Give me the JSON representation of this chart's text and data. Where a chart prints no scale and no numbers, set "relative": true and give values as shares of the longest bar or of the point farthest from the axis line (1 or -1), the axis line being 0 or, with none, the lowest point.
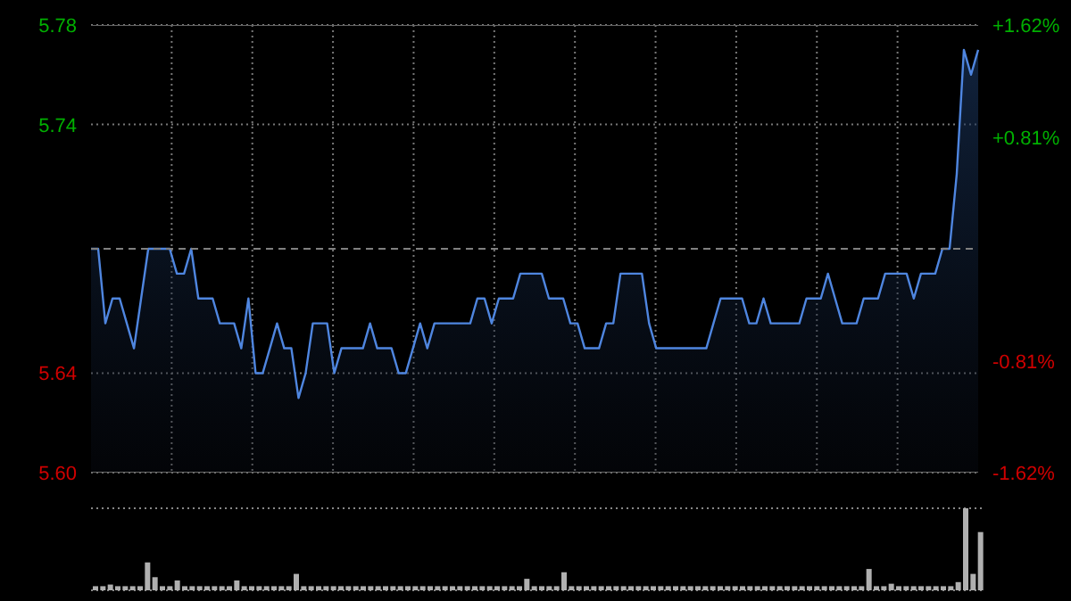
{
  "chart_data": [
    {
      "type": "area",
      "categories": [
        null,
        null,
        null,
        null,
        null,
        null,
        null,
        null,
        null,
        null,
        null,
        null,
        null,
        null,
        null,
        null,
        null,
        null,
        null,
        null,
        null,
        null,
        null,
        null,
        null,
        null,
        null,
        null,
        null,
        null,
        null,
        null,
        null,
        null,
        null,
        null,
        null,
        null,
        null,
        null,
        null,
        null,
        null,
        null,
        null,
        null,
        null,
        null,
        null,
        null,
        null,
        null,
        null,
        null,
        null,
        null,
        null,
        null,
        null,
        null,
        null,
        null,
        null,
        null,
        null,
        null,
        null,
        null,
        null,
        null,
        null,
        null,
        null,
        null,
        null,
        null,
        null,
        null,
        null,
        null,
        null,
        null,
        null,
        null,
        null,
        null,
        null,
        null,
        null,
        null,
        null,
        null,
        null,
        null,
        null,
        null,
        null,
        null,
        null,
        null,
        null,
        null,
        null,
        null,
        null,
        null,
        null,
        null,
        null,
        null,
        null,
        null,
        null,
        null,
        null,
        null,
        null,
        null,
        null,
        null,
        null,
        null,
        null,
        null,
        null
      ],
      "series": [
        {
          "color": "#4f86e0",
          "values": [
            5.69,
            5.69,
            5.66,
            5.67,
            5.67,
            5.66,
            5.65,
            5.67,
            5.69,
            5.69,
            5.69,
            5.69,
            5.68,
            5.68,
            5.69,
            5.67,
            5.67,
            5.67,
            5.66,
            5.66,
            5.66,
            5.65,
            5.67,
            5.64,
            5.64,
            5.65,
            5.66,
            5.65,
            5.65,
            5.63,
            5.64,
            5.66,
            5.66,
            5.66,
            5.64,
            5.65,
            5.65,
            5.65,
            5.65,
            5.66,
            5.65,
            5.65,
            5.65,
            5.64,
            5.64,
            5.65,
            5.66,
            5.65,
            5.66,
            5.66,
            5.66,
            5.66,
            5.66,
            5.66,
            5.67,
            5.67,
            5.66,
            5.67,
            5.67,
            5.67,
            5.68,
            5.68,
            5.68,
            5.68,
            5.67,
            5.67,
            5.67,
            5.66,
            5.66,
            5.65,
            5.65,
            5.65,
            5.66,
            5.66,
            5.68,
            5.68,
            5.68,
            5.68,
            5.66,
            5.65,
            5.65,
            5.65,
            5.65,
            5.65,
            5.65,
            5.65,
            5.65,
            5.66,
            5.67,
            5.67,
            5.67,
            5.67,
            5.66,
            5.66,
            5.67,
            5.66,
            5.66,
            5.66,
            5.66,
            5.66,
            5.67,
            5.67,
            5.67,
            5.68,
            5.67,
            5.66,
            5.66,
            5.66,
            5.67,
            5.67,
            5.67,
            5.68,
            5.68,
            5.68,
            5.68,
            5.67,
            5.68,
            5.68,
            5.68,
            5.69,
            5.69,
            5.72,
            5.77,
            5.76,
            5.77
          ]
        }
      ],
      "ylim": [
        5.6,
        5.78
      ],
      "yticks": [
        {
          "value": 5.6,
          "label": "5.60"
        },
        5.64,
        5.74,
        5.78
      ],
      "y2lim": [
        -1.62,
        1.62
      ],
      "y2ticks": [
        {
          "value": -1.62,
          "label": "-1.62%"
        },
        {
          "value": -0.81,
          "label": "-0.81%"
        },
        {
          "value": 0.81,
          "label": "+0.81%"
        },
        {
          "value": 1.62,
          "label": "+1.62%"
        }
      ],
      "ref_lines": [
        {
          "axis": "y",
          "value": 5.69,
          "line_style": "dashed",
          "color": "#808080"
        }
      ],
      "grid": true,
      "tick_labels": "y"
    },
    {
      "type": "bar",
      "relative": true,
      "color": "#b0b0b0",
      "grid": true,
      "tick_labels": false,
      "categories": [
        null,
        null,
        null,
        null,
        null,
        null,
        null,
        null,
        null,
        null,
        null,
        null,
        null,
        null,
        null,
        null,
        null,
        null,
        null,
        null,
        null,
        null,
        null,
        null,
        null,
        null,
        null,
        null,
        null,
        null,
        null,
        null,
        null,
        null,
        null,
        null,
        null,
        null,
        null,
        null,
        null,
        null,
        null,
        null,
        null,
        null,
        null,
        null,
        null,
        null,
        null,
        null,
        null,
        null,
        null,
        null,
        null,
        null,
        null,
        null,
        null,
        null,
        null,
        null,
        null,
        null,
        null,
        null,
        null,
        null,
        null,
        null,
        null,
        null,
        null,
        null,
        null,
        null,
        null,
        null,
        null,
        null,
        null,
        null,
        null,
        null,
        null,
        null,
        null,
        null,
        null,
        null,
        null,
        null,
        null,
        null,
        null,
        null,
        null,
        null,
        null,
        null,
        null,
        null,
        null,
        null,
        null,
        null,
        null,
        null,
        null,
        null,
        null,
        null,
        null,
        null,
        null,
        null,
        null,
        null
      ],
      "values": [
        0.05,
        0.05,
        0.07,
        0.05,
        0.05,
        0.05,
        0.05,
        0.34,
        0.16,
        0.05,
        0.05,
        0.12,
        0.05,
        0.05,
        0.05,
        0.05,
        0.05,
        0.05,
        0.05,
        0.12,
        0.05,
        0.05,
        0.05,
        0.05,
        0.05,
        0.05,
        0.05,
        0.2,
        0.05,
        0.05,
        0.05,
        0.05,
        0.05,
        0.05,
        0.05,
        0.05,
        0.05,
        0.05,
        0.05,
        0.05,
        0.05,
        0.05,
        0.05,
        0.05,
        0.05,
        0.05,
        0.05,
        0.05,
        0.05,
        0.05,
        0.05,
        0.05,
        0.05,
        0.05,
        0.05,
        0.05,
        0.05,
        0.05,
        0.14,
        0.05,
        0.05,
        0.05,
        0.05,
        0.22,
        0.05,
        0.05,
        0.05,
        0.05,
        0.05,
        0.05,
        0.05,
        0.05,
        0.05,
        0.05,
        0.05,
        0.05,
        0.05,
        0.05,
        0.05,
        0.05,
        0.05,
        0.05,
        0.05,
        0.05,
        0.05,
        0.05,
        0.05,
        0.05,
        0.05,
        0.05,
        0.05,
        0.05,
        0.05,
        0.05,
        0.05,
        0.05,
        0.05,
        0.05,
        0.05,
        0.05,
        0.05,
        0.05,
        0.05,
        0.05,
        0.26,
        0.05,
        0.05,
        0.08,
        0.05,
        0.05,
        0.05,
        0.05,
        0.05,
        0.05,
        0.05,
        0.05,
        0.1,
        1,
        0.2,
        0.71
      ]
    }
  ]
}
